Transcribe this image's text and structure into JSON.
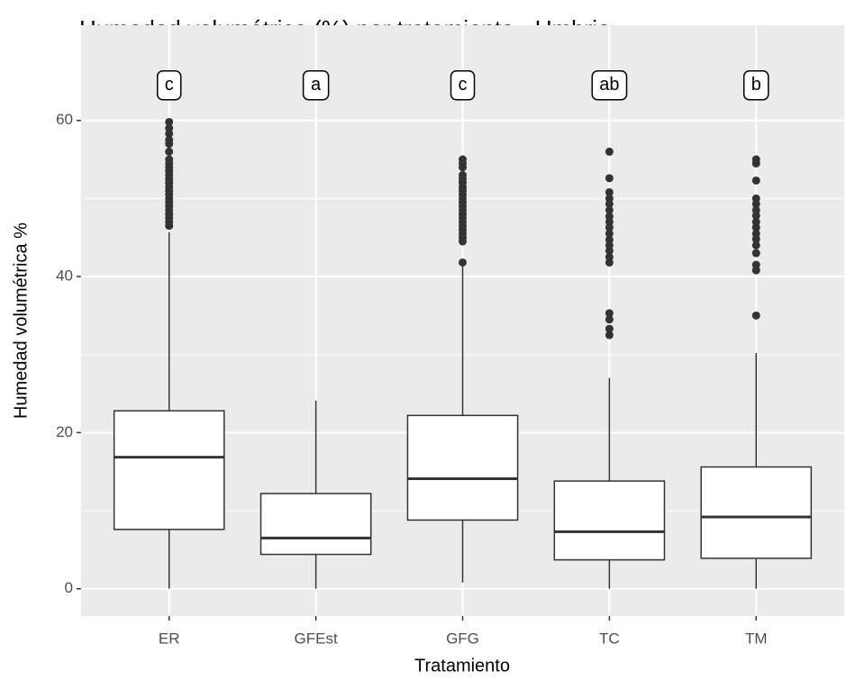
{
  "chart_data": {
    "type": "boxplot",
    "title": "Humedad volumétrica (%) por tratamiento - Umbria",
    "x_label": "Tratamiento",
    "y_label": "Humedad volumétrica %",
    "categories": [
      "ER",
      "GFEst",
      "GFG",
      "TC",
      "TM"
    ],
    "stats": {
      "whisker_low": [
        0,
        0,
        0.8,
        0,
        0
      ],
      "q1": [
        7.6,
        4.4,
        8.8,
        3.7,
        3.9
      ],
      "median": [
        16.85,
        6.5,
        14.1,
        7.3,
        9.2
      ],
      "q3": [
        22.8,
        12.2,
        22.2,
        13.8,
        15.6
      ],
      "whisker_high": [
        45.7,
        24.1,
        41.5,
        27,
        30.2
      ]
    },
    "outliers": [
      [
        46.5,
        47,
        47.5,
        48,
        48.5,
        49,
        49.5,
        50,
        50.5,
        51,
        51.5,
        52,
        52.5,
        53,
        53.5,
        54,
        54.5,
        55,
        56,
        57,
        57.5,
        58.3,
        59,
        59.8
      ],
      [],
      [
        41.8,
        44.5,
        45,
        45.5,
        46,
        46.5,
        47,
        47.5,
        48,
        48.5,
        49,
        49.5,
        50,
        50.5,
        51,
        51.5,
        52,
        52.5,
        53,
        54,
        54.5,
        55
      ],
      [
        32.5,
        33.3,
        34.5,
        35.3,
        41.8,
        42.5,
        43.3,
        44,
        44.7,
        45.5,
        46.3,
        47,
        47.7,
        48.5,
        49.3,
        50,
        50.8,
        52.6,
        56
      ],
      [
        35,
        40.8,
        41.5,
        43,
        44,
        44.8,
        45.5,
        46.3,
        47,
        47.8,
        48.5,
        49.3,
        50,
        52.3,
        54.5,
        55
      ]
    ],
    "letters": [
      "c",
      "a",
      "c",
      "ab",
      "b"
    ],
    "letter_y": 64.5,
    "ylim": [
      -3.5,
      72.2
    ],
    "yticks": [
      0,
      20,
      40,
      60
    ],
    "minor_yticks": [
      10,
      30,
      50
    ],
    "grid": true,
    "box_fill": "#ffffff",
    "line_color": "#333333",
    "panel_color": "#ebebeb"
  }
}
